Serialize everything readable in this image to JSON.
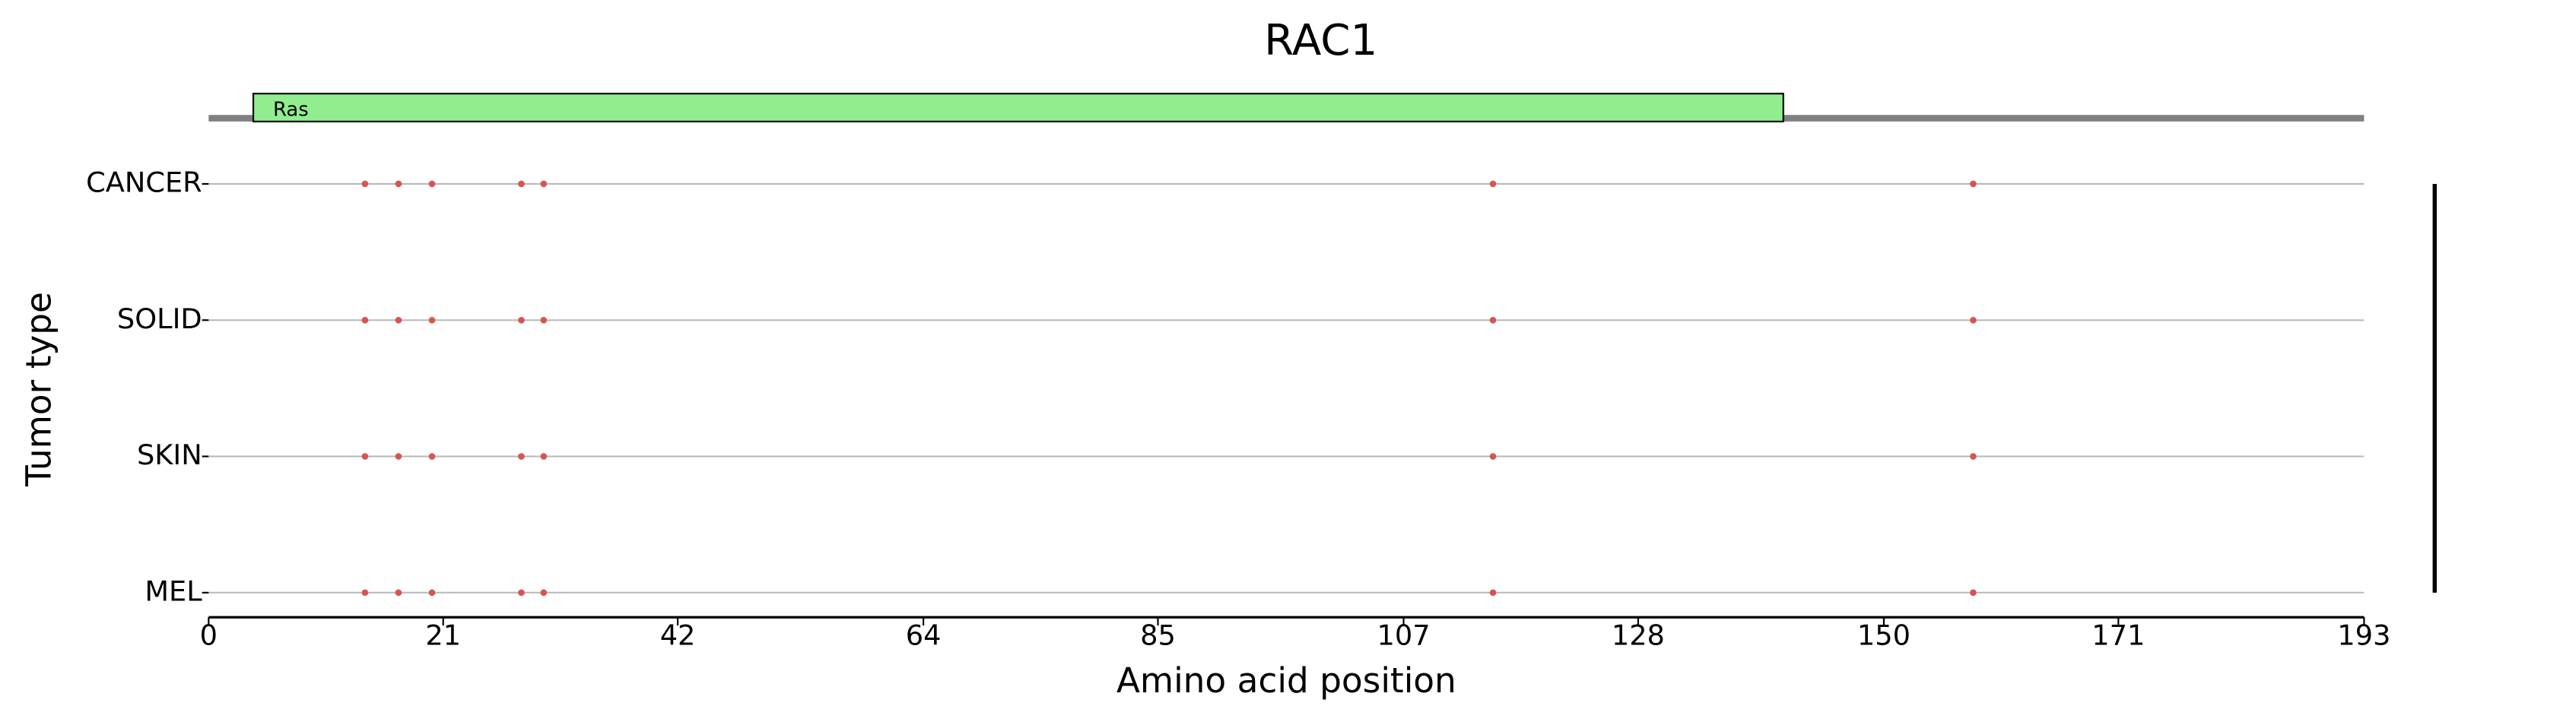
{
  "chart_data": {
    "type": "mutation-scatter",
    "title": "RAC1",
    "xlabel": "Amino acid position",
    "ylabel": "Tumor type",
    "categories": [
      "CANCER",
      "SOLID",
      "SKIN",
      "MEL"
    ],
    "points": [
      [
        14,
        17,
        20,
        28,
        30,
        115,
        158
      ],
      [
        14,
        17,
        20,
        28,
        30,
        115,
        158
      ],
      [
        14,
        17,
        20,
        28,
        30,
        115,
        158
      ],
      [
        14,
        17,
        20,
        28,
        30,
        115,
        158
      ]
    ],
    "color": "#d9534f",
    "domains": [
      {
        "name": "Ras",
        "start": 4,
        "end": 141,
        "color": "#90ee90"
      }
    ],
    "xlim": [
      0,
      193
    ],
    "xticks": [
      0,
      21,
      42,
      64,
      85,
      107,
      128,
      150,
      171,
      193
    ]
  }
}
